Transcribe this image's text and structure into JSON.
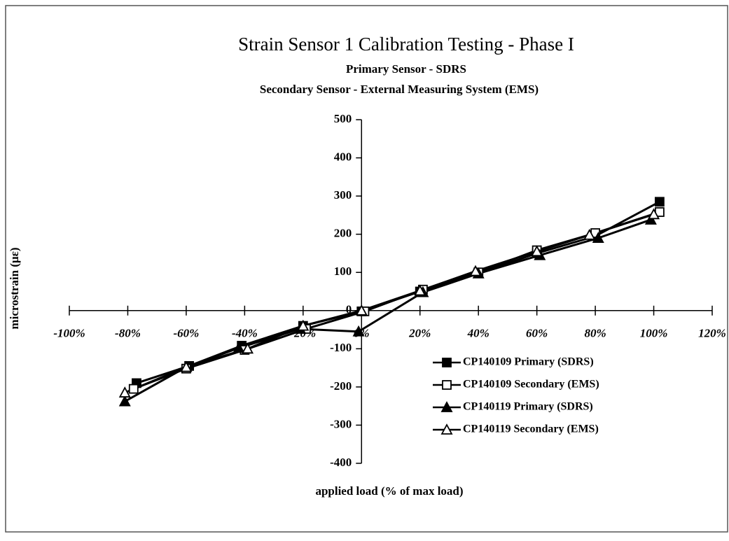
{
  "chart_data": {
    "type": "line",
    "title": "Strain Sensor 1 Calibration Testing - Phase I",
    "subtitle": [
      "Primary Sensor - SDRS",
      "Secondary Sensor - External Measuring System (EMS)"
    ],
    "xlabel": "applied load (% of max load)",
    "ylabel": "microstrain (με)",
    "xlim": [
      -100,
      120
    ],
    "xticks": [
      {
        "value": -100,
        "label": "-100%"
      },
      {
        "value": -80,
        "label": "-80%"
      },
      {
        "value": -60,
        "label": "-60%"
      },
      {
        "value": -40,
        "label": "-40%"
      },
      {
        "value": -20,
        "label": "-20%"
      },
      {
        "value": 0,
        "label": "0%"
      },
      {
        "value": 20,
        "label": "20%"
      },
      {
        "value": 40,
        "label": "40%"
      },
      {
        "value": 60,
        "label": "60%"
      },
      {
        "value": 80,
        "label": "80%"
      },
      {
        "value": 100,
        "label": "100%"
      },
      {
        "value": 120,
        "label": "120%"
      }
    ],
    "ylim": [
      -400,
      500
    ],
    "yticks": [
      -400,
      -300,
      -200,
      -100,
      0,
      100,
      200,
      300,
      400,
      500
    ],
    "legend": "lower right",
    "series": [
      {
        "name": "CP140109 Primary (SDRS)",
        "color": "#000000",
        "marker": "square",
        "filled": true,
        "x": [
          -77,
          -59,
          -41,
          -20,
          0,
          20,
          40,
          60,
          80,
          102
        ],
        "values": [
          -190,
          -145,
          -92,
          -40,
          -2,
          50,
          98,
          150,
          195,
          285
        ]
      },
      {
        "name": "CP140109 Secondary (EMS)",
        "color": "#000000",
        "marker": "square",
        "filled": false,
        "x": [
          -78,
          -60,
          -40,
          -19,
          1,
          21,
          40,
          60,
          80,
          102
        ],
        "values": [
          -205,
          -152,
          -103,
          -48,
          -2,
          55,
          100,
          158,
          203,
          258
        ]
      },
      {
        "name": "CP140119 Primary (SDRS)",
        "color": "#000000",
        "marker": "triangle",
        "filled": true,
        "x": [
          -81,
          -60,
          -42,
          -21,
          -1,
          21,
          40,
          61,
          81,
          99
        ],
        "values": [
          -238,
          -148,
          -98,
          -48,
          -55,
          48,
          97,
          145,
          190,
          238
        ]
      },
      {
        "name": "CP140119 Secondary (EMS)",
        "color": "#000000",
        "marker": "triangle",
        "filled": false,
        "x": [
          -81,
          -60,
          -39,
          -20,
          0,
          20,
          39,
          60,
          78,
          100
        ],
        "values": [
          -215,
          -148,
          -100,
          -40,
          0,
          52,
          103,
          155,
          198,
          252
        ]
      }
    ]
  }
}
